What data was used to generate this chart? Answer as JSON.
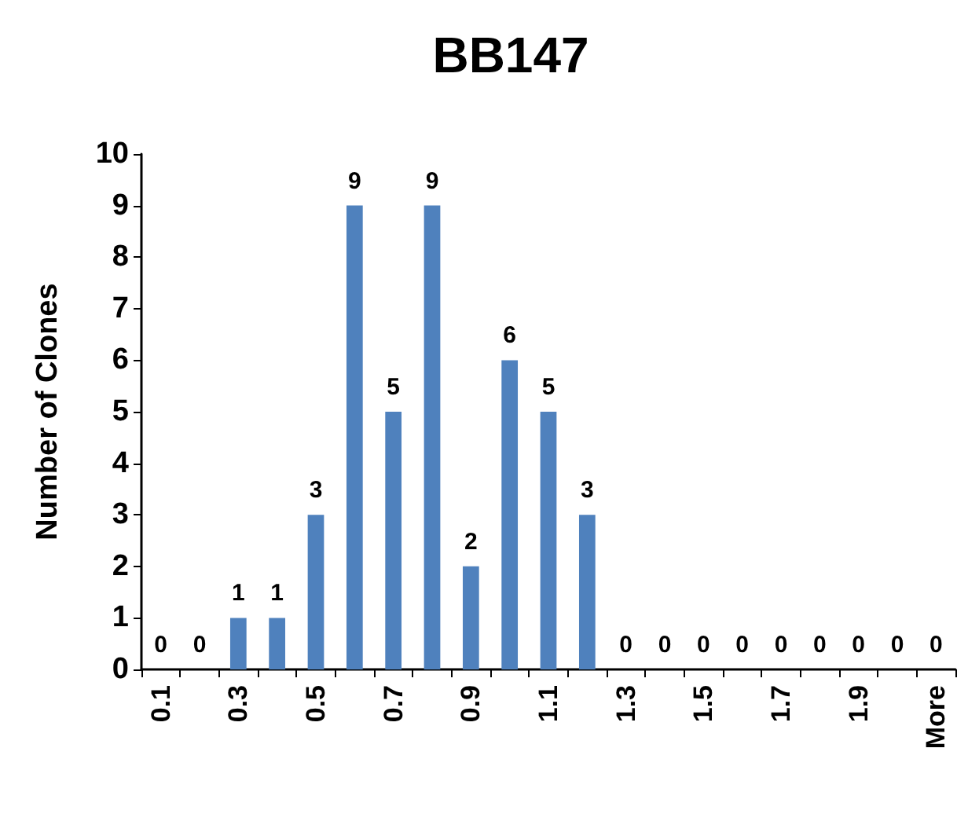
{
  "chart_data": {
    "type": "bar",
    "title": "BB147",
    "ylabel": "Number of Clones",
    "categories": [
      "0.1",
      null,
      "0.3",
      null,
      "0.5",
      null,
      "0.7",
      null,
      "0.9",
      null,
      "1.1",
      null,
      "1.3",
      null,
      "1.5",
      null,
      "1.7",
      null,
      "1.9",
      null,
      "More"
    ],
    "values": [
      0,
      0,
      1,
      1,
      3,
      9,
      5,
      9,
      2,
      6,
      5,
      3,
      0,
      0,
      0,
      0,
      0,
      0,
      0,
      0,
      0
    ],
    "color": "#4f81bd",
    "ylim": [
      0,
      10
    ],
    "yticks": [
      0,
      1,
      2,
      3,
      4,
      5,
      6,
      7,
      8,
      9,
      10
    ],
    "grid": false,
    "data_labels": true
  }
}
